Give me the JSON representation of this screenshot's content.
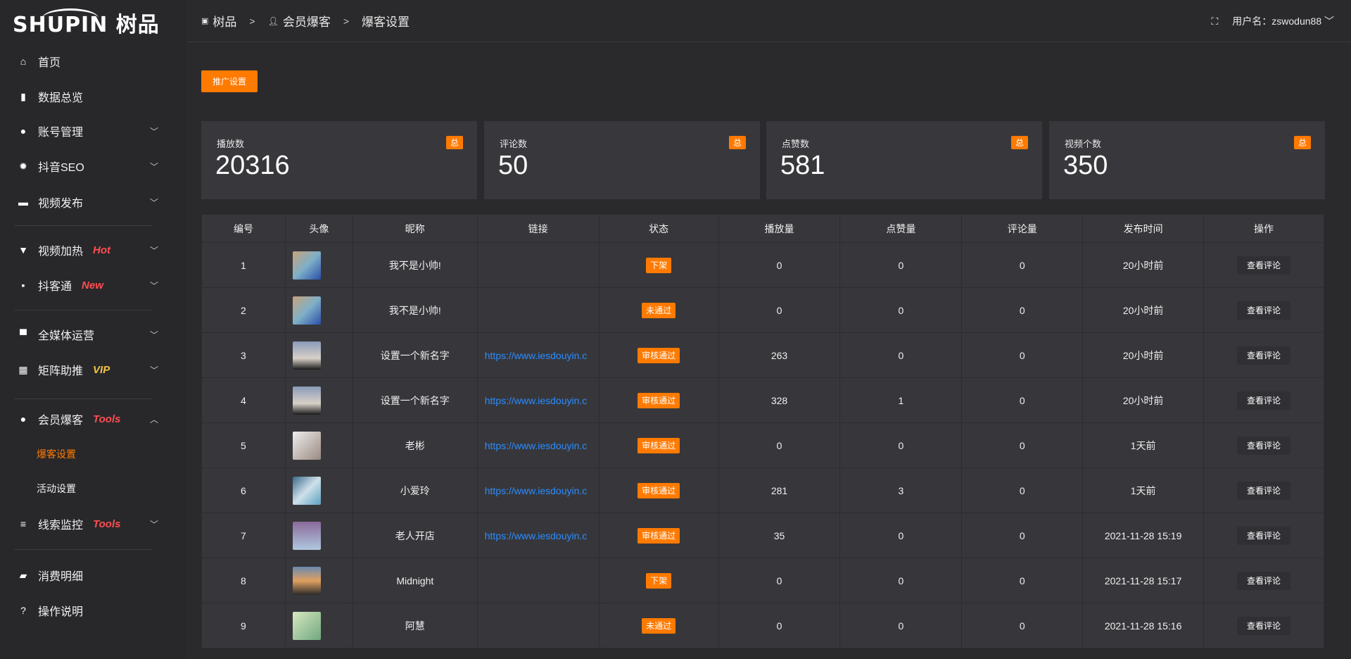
{
  "logo": {
    "text": "SHUPIN 树品"
  },
  "sidebar": {
    "items": [
      {
        "label": "首页",
        "icon": "home-icon",
        "glyph": "⌂"
      },
      {
        "label": "数据总览",
        "icon": "bar-chart-icon",
        "glyph": "▮"
      },
      {
        "label": "账号管理",
        "icon": "user-icon",
        "glyph": "●",
        "chevron": "﹀"
      },
      {
        "label": "抖音SEO",
        "icon": "gear-icon",
        "glyph": "✹",
        "chevron": "﹀"
      },
      {
        "label": "视频发布",
        "icon": "video-icon",
        "glyph": "▬",
        "chevron": "﹀"
      },
      {
        "label": "视频加热",
        "icon": "signpost-icon",
        "glyph": "▼",
        "tag": "Hot",
        "chevron": "﹀"
      },
      {
        "label": "抖客通",
        "icon": "comment-icon",
        "glyph": "▪",
        "tag": "New",
        "chevron": "﹀"
      },
      {
        "label": "全媒体运营",
        "icon": "monitor-icon",
        "glyph": "▀",
        "chevron": "﹀"
      },
      {
        "label": "矩阵助推",
        "icon": "grid-icon",
        "glyph": "▦",
        "tag": "VIP",
        "chevron": "﹀"
      },
      {
        "label": "会员爆客",
        "icon": "user-icon",
        "glyph": "●",
        "tag": "Tools",
        "chevron": "︿"
      },
      {
        "label": "爆客设置"
      },
      {
        "label": "活动设置"
      },
      {
        "label": "线索监控",
        "icon": "sliders-icon",
        "glyph": "≡",
        "tag": "Tools",
        "chevron": "﹀"
      },
      {
        "label": "消费明细",
        "icon": "wallet-icon",
        "glyph": "▰"
      },
      {
        "label": "操作说明",
        "icon": "help-icon",
        "glyph": "?"
      }
    ],
    "tag_colors": {
      "Hot": "#ff4d4f",
      "New": "#ff4d4f",
      "VIP": "#f5c242",
      "Tools": "#ff4d4f"
    }
  },
  "header": {
    "breadcrumb": [
      "树品",
      "会员爆客",
      "爆客设置"
    ],
    "user_label": "用户名：zswodun88"
  },
  "toolbar": {
    "promo_settings": "推广设置"
  },
  "stats": [
    {
      "label": "播放数",
      "value": "20316",
      "badge": "总"
    },
    {
      "label": "评论数",
      "value": "50",
      "badge": "总"
    },
    {
      "label": "点赞数",
      "value": "581",
      "badge": "总"
    },
    {
      "label": "视频个数",
      "value": "350",
      "badge": "总"
    }
  ],
  "table": {
    "columns": [
      "编号",
      "头像",
      "昵称",
      "链接",
      "状态",
      "播放量",
      "点赞量",
      "评论量",
      "发布时间",
      "操作"
    ],
    "action_label": "查看评论",
    "rows": [
      {
        "id": "1",
        "name": "我不是小帅!",
        "link": "",
        "status": "下架",
        "plays": "0",
        "likes": "0",
        "comments": "0",
        "time": "20小时前"
      },
      {
        "id": "2",
        "name": "我不是小帅!",
        "link": "",
        "status": "未通过",
        "plays": "0",
        "likes": "0",
        "comments": "0",
        "time": "20小时前"
      },
      {
        "id": "3",
        "name": "设置一个新名字",
        "link": "https://www.iesdouyin.c",
        "status": "审核通过",
        "plays": "263",
        "likes": "0",
        "comments": "0",
        "time": "20小时前"
      },
      {
        "id": "4",
        "name": "设置一个新名字",
        "link": "https://www.iesdouyin.c",
        "status": "审核通过",
        "plays": "328",
        "likes": "1",
        "comments": "0",
        "time": "20小时前"
      },
      {
        "id": "5",
        "name": "老彬",
        "link": "https://www.iesdouyin.c",
        "status": "审核通过",
        "plays": "0",
        "likes": "0",
        "comments": "0",
        "time": "1天前"
      },
      {
        "id": "6",
        "name": "小爱玲",
        "link": "https://www.iesdouyin.c",
        "status": "审核通过",
        "plays": "281",
        "likes": "3",
        "comments": "0",
        "time": "1天前"
      },
      {
        "id": "7",
        "name": "老人开店",
        "link": "https://www.iesdouyin.c",
        "status": "审核通过",
        "plays": "35",
        "likes": "0",
        "comments": "0",
        "time": "2021-11-28 15:19"
      },
      {
        "id": "8",
        "name": "Midnight",
        "link": "",
        "status": "下架",
        "plays": "0",
        "likes": "0",
        "comments": "0",
        "time": "2021-11-28 15:17"
      },
      {
        "id": "9",
        "name": "阿慧",
        "link": "",
        "status": "未通过",
        "plays": "0",
        "likes": "0",
        "comments": "0",
        "time": "2021-11-28 15:16"
      }
    ]
  },
  "colors": {
    "accent": "#ff7a00",
    "link": "#2b8cff"
  }
}
